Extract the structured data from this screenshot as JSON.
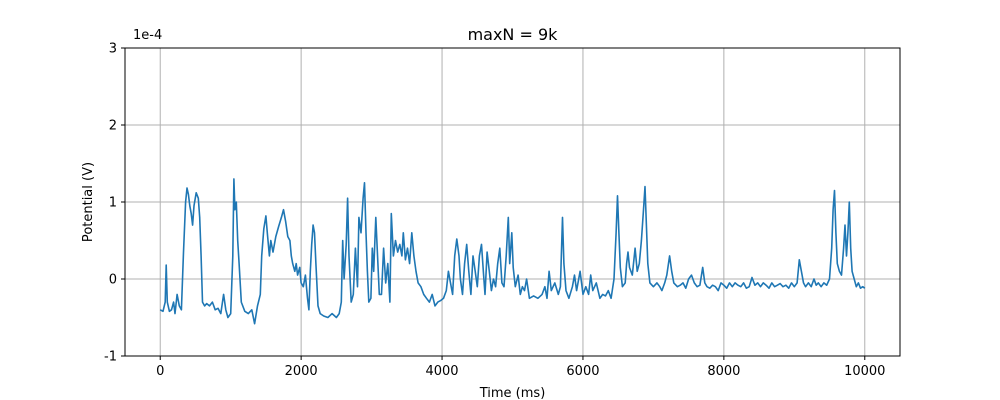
{
  "chart_data": {
    "type": "line",
    "title": "maxN = 9k",
    "xlabel": "Time (ms)",
    "ylabel": "Potential (V)",
    "y_multiplier": "1e-4",
    "xlim": [
      -500,
      10500
    ],
    "ylim": [
      -1,
      3
    ],
    "x_ticks": [
      0,
      2000,
      4000,
      6000,
      8000,
      10000
    ],
    "x_tick_labels": [
      "0",
      "2000",
      "4000",
      "6000",
      "8000",
      "10000"
    ],
    "y_ticks": [
      -1,
      0,
      1,
      2,
      3
    ],
    "y_tick_labels": [
      "-1",
      "0",
      "1",
      "2",
      "3"
    ],
    "grid": true,
    "series": [
      {
        "color": "#1f77b4",
        "points": [
          [
            0,
            -0.4
          ],
          [
            40,
            -0.42
          ],
          [
            70,
            -0.3
          ],
          [
            85,
            0.18
          ],
          [
            100,
            -0.3
          ],
          [
            130,
            -0.42
          ],
          [
            160,
            -0.4
          ],
          [
            190,
            -0.3
          ],
          [
            210,
            -0.45
          ],
          [
            240,
            -0.2
          ],
          [
            270,
            -0.35
          ],
          [
            300,
            -0.4
          ],
          [
            330,
            0.35
          ],
          [
            360,
            1.0
          ],
          [
            380,
            1.18
          ],
          [
            400,
            1.1
          ],
          [
            420,
            0.95
          ],
          [
            440,
            0.85
          ],
          [
            460,
            0.7
          ],
          [
            480,
            0.95
          ],
          [
            510,
            1.12
          ],
          [
            540,
            1.05
          ],
          [
            560,
            0.8
          ],
          [
            580,
            0.3
          ],
          [
            600,
            -0.3
          ],
          [
            630,
            -0.35
          ],
          [
            660,
            -0.32
          ],
          [
            700,
            -0.35
          ],
          [
            740,
            -0.3
          ],
          [
            780,
            -0.4
          ],
          [
            820,
            -0.38
          ],
          [
            860,
            -0.45
          ],
          [
            900,
            -0.2
          ],
          [
            930,
            -0.4
          ],
          [
            960,
            -0.5
          ],
          [
            1000,
            -0.45
          ],
          [
            1030,
            0.3
          ],
          [
            1045,
            1.3
          ],
          [
            1060,
            0.9
          ],
          [
            1080,
            1.0
          ],
          [
            1100,
            0.5
          ],
          [
            1120,
            0.2
          ],
          [
            1150,
            -0.3
          ],
          [
            1200,
            -0.42
          ],
          [
            1250,
            -0.45
          ],
          [
            1300,
            -0.4
          ],
          [
            1340,
            -0.58
          ],
          [
            1380,
            -0.35
          ],
          [
            1420,
            -0.2
          ],
          [
            1440,
            0.3
          ],
          [
            1470,
            0.65
          ],
          [
            1500,
            0.82
          ],
          [
            1520,
            0.6
          ],
          [
            1550,
            0.3
          ],
          [
            1570,
            0.5
          ],
          [
            1600,
            0.35
          ],
          [
            1640,
            0.55
          ],
          [
            1680,
            0.68
          ],
          [
            1720,
            0.8
          ],
          [
            1750,
            0.9
          ],
          [
            1780,
            0.75
          ],
          [
            1810,
            0.55
          ],
          [
            1840,
            0.5
          ],
          [
            1860,
            0.3
          ],
          [
            1880,
            0.2
          ],
          [
            1910,
            0.1
          ],
          [
            1930,
            0.2
          ],
          [
            1950,
            0.05
          ],
          [
            1980,
            0.15
          ],
          [
            2000,
            -0.05
          ],
          [
            2030,
            -0.1
          ],
          [
            2060,
            0.05
          ],
          [
            2090,
            -0.25
          ],
          [
            2110,
            -0.4
          ],
          [
            2130,
            0.1
          ],
          [
            2150,
            0.45
          ],
          [
            2170,
            0.7
          ],
          [
            2190,
            0.6
          ],
          [
            2210,
            0.2
          ],
          [
            2240,
            -0.35
          ],
          [
            2270,
            -0.45
          ],
          [
            2320,
            -0.48
          ],
          [
            2380,
            -0.5
          ],
          [
            2440,
            -0.45
          ],
          [
            2500,
            -0.5
          ],
          [
            2540,
            -0.45
          ],
          [
            2570,
            -0.3
          ],
          [
            2590,
            0.5
          ],
          [
            2610,
            0.0
          ],
          [
            2640,
            0.45
          ],
          [
            2660,
            1.05
          ],
          [
            2680,
            0.3
          ],
          [
            2710,
            -0.3
          ],
          [
            2740,
            -0.2
          ],
          [
            2770,
            0.4
          ],
          [
            2800,
            -0.1
          ],
          [
            2820,
            0.8
          ],
          [
            2850,
            0.6
          ],
          [
            2880,
            1.05
          ],
          [
            2900,
            1.25
          ],
          [
            2920,
            0.6
          ],
          [
            2940,
            0.1
          ],
          [
            2960,
            -0.3
          ],
          [
            2990,
            -0.25
          ],
          [
            3010,
            0.4
          ],
          [
            3030,
            0.1
          ],
          [
            3060,
            0.8
          ],
          [
            3090,
            0.2
          ],
          [
            3110,
            -0.2
          ],
          [
            3140,
            -0.2
          ],
          [
            3170,
            0.4
          ],
          [
            3200,
            -0.05
          ],
          [
            3230,
            0.2
          ],
          [
            3260,
            -0.3
          ],
          [
            3280,
            0.85
          ],
          [
            3310,
            0.3
          ],
          [
            3340,
            0.5
          ],
          [
            3370,
            0.35
          ],
          [
            3400,
            0.45
          ],
          [
            3430,
            0.3
          ],
          [
            3450,
            0.6
          ],
          [
            3480,
            0.25
          ],
          [
            3510,
            0.4
          ],
          [
            3540,
            0.2
          ],
          [
            3570,
            0.6
          ],
          [
            3600,
            0.3
          ],
          [
            3630,
            0.1
          ],
          [
            3660,
            -0.05
          ],
          [
            3700,
            -0.1
          ],
          [
            3740,
            -0.2
          ],
          [
            3780,
            -0.25
          ],
          [
            3820,
            -0.3
          ],
          [
            3860,
            -0.2
          ],
          [
            3900,
            -0.35
          ],
          [
            3940,
            -0.3
          ],
          [
            3980,
            -0.28
          ],
          [
            4020,
            -0.25
          ],
          [
            4060,
            -0.15
          ],
          [
            4090,
            0.1
          ],
          [
            4120,
            -0.05
          ],
          [
            4150,
            -0.2
          ],
          [
            4180,
            0.3
          ],
          [
            4210,
            0.52
          ],
          [
            4240,
            0.3
          ],
          [
            4260,
            0.0
          ],
          [
            4290,
            -0.2
          ],
          [
            4320,
            0.2
          ],
          [
            4350,
            0.45
          ],
          [
            4380,
            0.1
          ],
          [
            4410,
            -0.2
          ],
          [
            4440,
            0.3
          ],
          [
            4470,
            0.1
          ],
          [
            4500,
            -0.1
          ],
          [
            4530,
            0.3
          ],
          [
            4560,
            0.45
          ],
          [
            4590,
            0.05
          ],
          [
            4610,
            -0.2
          ],
          [
            4640,
            0.35
          ],
          [
            4670,
            0.1
          ],
          [
            4700,
            -0.15
          ],
          [
            4730,
            0.0
          ],
          [
            4760,
            -0.1
          ],
          [
            4790,
            0.2
          ],
          [
            4820,
            0.4
          ],
          [
            4850,
            -0.05
          ],
          [
            4880,
            -0.1
          ],
          [
            4910,
            0.3
          ],
          [
            4940,
            0.8
          ],
          [
            4960,
            0.2
          ],
          [
            4990,
            0.6
          ],
          [
            5010,
            0.15
          ],
          [
            5040,
            -0.1
          ],
          [
            5080,
            0.05
          ],
          [
            5110,
            -0.2
          ],
          [
            5140,
            -0.1
          ],
          [
            5170,
            -0.15
          ],
          [
            5200,
            0.0
          ],
          [
            5240,
            -0.25
          ],
          [
            5300,
            -0.22
          ],
          [
            5360,
            -0.25
          ],
          [
            5420,
            -0.2
          ],
          [
            5460,
            -0.1
          ],
          [
            5490,
            -0.25
          ],
          [
            5520,
            0.1
          ],
          [
            5550,
            -0.15
          ],
          [
            5600,
            -0.05
          ],
          [
            5650,
            -0.2
          ],
          [
            5680,
            -0.1
          ],
          [
            5710,
            0.8
          ],
          [
            5730,
            0.2
          ],
          [
            5760,
            -0.15
          ],
          [
            5800,
            -0.25
          ],
          [
            5850,
            -0.1
          ],
          [
            5880,
            0.05
          ],
          [
            5910,
            -0.15
          ],
          [
            5960,
            0.1
          ],
          [
            6000,
            -0.2
          ],
          [
            6040,
            -0.1
          ],
          [
            6080,
            -0.2
          ],
          [
            6110,
            0.05
          ],
          [
            6140,
            -0.15
          ],
          [
            6190,
            -0.05
          ],
          [
            6240,
            -0.25
          ],
          [
            6280,
            -0.2
          ],
          [
            6320,
            -0.22
          ],
          [
            6360,
            -0.15
          ],
          [
            6400,
            -0.25
          ],
          [
            6440,
            0.0
          ],
          [
            6470,
            0.6
          ],
          [
            6490,
            1.08
          ],
          [
            6510,
            0.6
          ],
          [
            6530,
            0.15
          ],
          [
            6560,
            -0.1
          ],
          [
            6600,
            -0.05
          ],
          [
            6620,
            0.2
          ],
          [
            6640,
            0.35
          ],
          [
            6660,
            0.15
          ],
          [
            6700,
            0.05
          ],
          [
            6740,
            0.4
          ],
          [
            6770,
            0.1
          ],
          [
            6800,
            0.2
          ],
          [
            6830,
            0.5
          ],
          [
            6860,
            0.9
          ],
          [
            6880,
            1.2
          ],
          [
            6900,
            0.7
          ],
          [
            6920,
            0.2
          ],
          [
            6950,
            -0.05
          ],
          [
            7000,
            -0.1
          ],
          [
            7050,
            -0.05
          ],
          [
            7090,
            -0.1
          ],
          [
            7120,
            -0.15
          ],
          [
            7160,
            -0.05
          ],
          [
            7190,
            0.05
          ],
          [
            7230,
            0.3
          ],
          [
            7260,
            0.1
          ],
          [
            7290,
            -0.05
          ],
          [
            7340,
            -0.1
          ],
          [
            7380,
            -0.08
          ],
          [
            7420,
            -0.05
          ],
          [
            7460,
            -0.12
          ],
          [
            7500,
            0.0
          ],
          [
            7540,
            0.05
          ],
          [
            7580,
            -0.05
          ],
          [
            7620,
            -0.1
          ],
          [
            7660,
            -0.08
          ],
          [
            7700,
            0.15
          ],
          [
            7730,
            -0.05
          ],
          [
            7760,
            -0.1
          ],
          [
            7800,
            -0.12
          ],
          [
            7840,
            -0.08
          ],
          [
            7880,
            -0.1
          ],
          [
            7920,
            -0.15
          ],
          [
            7960,
            -0.05
          ],
          [
            8000,
            -0.08
          ],
          [
            8040,
            -0.12
          ],
          [
            8080,
            -0.05
          ],
          [
            8120,
            -0.1
          ],
          [
            8160,
            -0.05
          ],
          [
            8200,
            -0.08
          ],
          [
            8240,
            -0.1
          ],
          [
            8280,
            -0.05
          ],
          [
            8320,
            -0.12
          ],
          [
            8360,
            -0.1
          ],
          [
            8400,
            0.02
          ],
          [
            8440,
            -0.08
          ],
          [
            8480,
            -0.05
          ],
          [
            8520,
            -0.1
          ],
          [
            8560,
            -0.05
          ],
          [
            8600,
            -0.08
          ],
          [
            8640,
            -0.12
          ],
          [
            8680,
            -0.05
          ],
          [
            8720,
            -0.1
          ],
          [
            8760,
            -0.08
          ],
          [
            8800,
            -0.06
          ],
          [
            8840,
            -0.1
          ],
          [
            8880,
            -0.08
          ],
          [
            8920,
            -0.12
          ],
          [
            8960,
            -0.05
          ],
          [
            9000,
            -0.1
          ],
          [
            9040,
            -0.05
          ],
          [
            9070,
            0.25
          ],
          [
            9100,
            0.1
          ],
          [
            9130,
            -0.05
          ],
          [
            9160,
            -0.1
          ],
          [
            9200,
            -0.05
          ],
          [
            9240,
            -0.1
          ],
          [
            9280,
            0.0
          ],
          [
            9310,
            -0.08
          ],
          [
            9340,
            -0.05
          ],
          [
            9380,
            -0.1
          ],
          [
            9420,
            -0.05
          ],
          [
            9460,
            -0.08
          ],
          [
            9500,
            0.0
          ],
          [
            9530,
            0.4
          ],
          [
            9550,
            0.9
          ],
          [
            9570,
            1.15
          ],
          [
            9590,
            0.6
          ],
          [
            9610,
            0.2
          ],
          [
            9640,
            0.1
          ],
          [
            9670,
            0.05
          ],
          [
            9700,
            0.4
          ],
          [
            9720,
            0.7
          ],
          [
            9740,
            0.3
          ],
          [
            9760,
            0.6
          ],
          [
            9780,
            1.0
          ],
          [
            9800,
            0.4
          ],
          [
            9820,
            0.1
          ],
          [
            9850,
            0.0
          ],
          [
            9880,
            -0.1
          ],
          [
            9910,
            -0.05
          ],
          [
            9940,
            -0.12
          ],
          [
            9970,
            -0.1
          ],
          [
            10000,
            -0.12
          ]
        ]
      }
    ]
  }
}
